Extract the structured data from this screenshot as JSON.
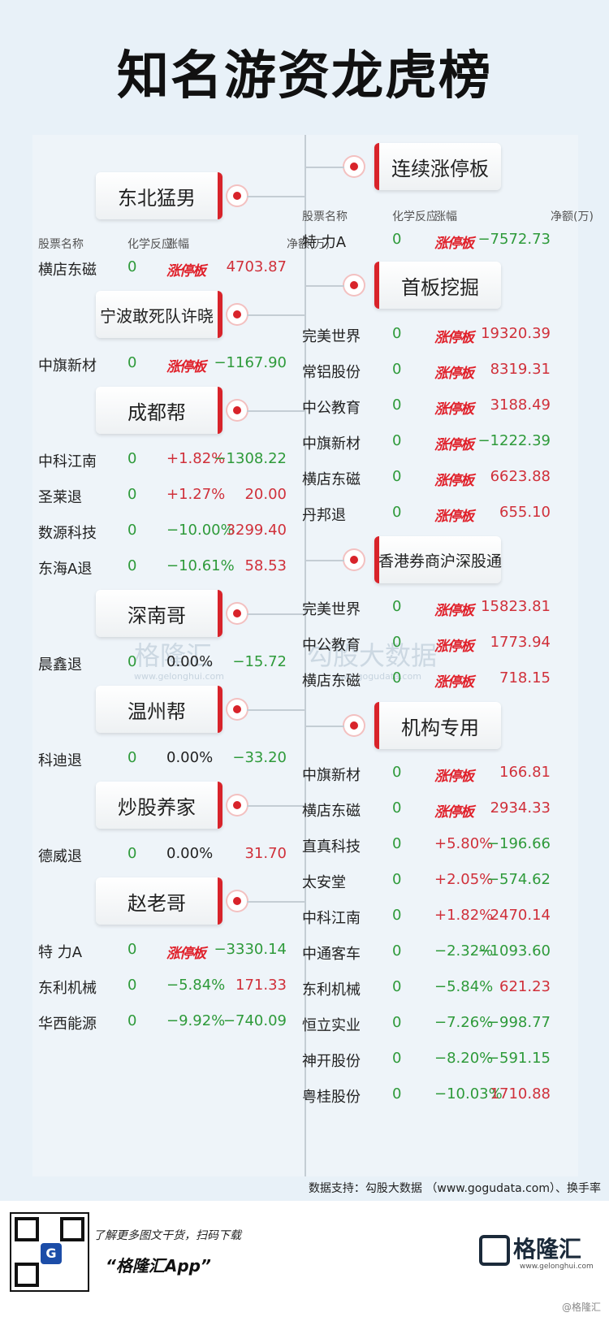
{
  "title": "知名游资龙虎榜",
  "headers": {
    "name": "股票名称",
    "chem": "化学反应",
    "change": "涨幅",
    "net": "净额(万)"
  },
  "limit_label": "涨停板",
  "left": [
    {
      "tag": "东北猛男",
      "rows": [
        {
          "name": "横店东磁",
          "chem": "0",
          "change": "涨停板",
          "net": "4703.87"
        }
      ]
    },
    {
      "tag": "宁波敢死队许晓",
      "rows": [
        {
          "name": "中旗新材",
          "chem": "0",
          "change": "涨停板",
          "net": "−1167.90"
        }
      ]
    },
    {
      "tag": "成都帮",
      "rows": [
        {
          "name": "中科江南",
          "chem": "0",
          "change": "+1.82%",
          "net": "−1308.22"
        },
        {
          "name": "圣莱退",
          "chem": "0",
          "change": "+1.27%",
          "net": "20.00"
        },
        {
          "name": "数源科技",
          "chem": "0",
          "change": "−10.00%",
          "net": "3299.40"
        },
        {
          "name": "东海A退",
          "chem": "0",
          "change": "−10.61%",
          "net": "58.53"
        }
      ]
    },
    {
      "tag": "深南哥",
      "rows": [
        {
          "name": "晨鑫退",
          "chem": "0",
          "change": "0.00%",
          "net": "−15.72"
        }
      ]
    },
    {
      "tag": "温州帮",
      "rows": [
        {
          "name": "科迪退",
          "chem": "0",
          "change": "0.00%",
          "net": "−33.20"
        }
      ]
    },
    {
      "tag": "炒股养家",
      "rows": [
        {
          "name": "德威退",
          "chem": "0",
          "change": "0.00%",
          "net": "31.70"
        }
      ]
    },
    {
      "tag": "赵老哥",
      "rows": [
        {
          "name": "特 力A",
          "chem": "0",
          "change": "涨停板",
          "net": "−3330.14"
        },
        {
          "name": "东利机械",
          "chem": "0",
          "change": "−5.84%",
          "net": "171.33"
        },
        {
          "name": "华西能源",
          "chem": "0",
          "change": "−9.92%",
          "net": "−740.09"
        }
      ]
    }
  ],
  "right": [
    {
      "tag": "连续涨停板",
      "rows": [
        {
          "name": "特 力A",
          "chem": "0",
          "change": "涨停板",
          "net": "−7572.73"
        }
      ]
    },
    {
      "tag": "首板挖掘",
      "rows": [
        {
          "name": "完美世界",
          "chem": "0",
          "change": "涨停板",
          "net": "19320.39"
        },
        {
          "name": "常铝股份",
          "chem": "0",
          "change": "涨停板",
          "net": "8319.31"
        },
        {
          "name": "中公教育",
          "chem": "0",
          "change": "涨停板",
          "net": "3188.49"
        },
        {
          "name": "中旗新材",
          "chem": "0",
          "change": "涨停板",
          "net": "−1222.39"
        },
        {
          "name": "横店东磁",
          "chem": "0",
          "change": "涨停板",
          "net": "6623.88"
        },
        {
          "name": "丹邦退",
          "chem": "0",
          "change": "涨停板",
          "net": "655.10"
        }
      ]
    },
    {
      "tag": "香港券商沪深股通",
      "rows": [
        {
          "name": "完美世界",
          "chem": "0",
          "change": "涨停板",
          "net": "15823.81"
        },
        {
          "name": "中公教育",
          "chem": "0",
          "change": "涨停板",
          "net": "1773.94"
        },
        {
          "name": "横店东磁",
          "chem": "0",
          "change": "涨停板",
          "net": "718.15"
        }
      ]
    },
    {
      "tag": "机构专用",
      "rows": [
        {
          "name": "中旗新材",
          "chem": "0",
          "change": "涨停板",
          "net": "166.81"
        },
        {
          "name": "横店东磁",
          "chem": "0",
          "change": "涨停板",
          "net": "2934.33"
        },
        {
          "name": "直真科技",
          "chem": "0",
          "change": "+5.80%",
          "net": "−196.66"
        },
        {
          "name": "太安堂",
          "chem": "0",
          "change": "+2.05%",
          "net": "−574.62"
        },
        {
          "name": "中科江南",
          "chem": "0",
          "change": "+1.82%",
          "net": "2470.14"
        },
        {
          "name": "中通客车",
          "chem": "0",
          "change": "−2.32%",
          "net": "−1093.60"
        },
        {
          "name": "东利机械",
          "chem": "0",
          "change": "−5.84%",
          "net": "621.23"
        },
        {
          "name": "恒立实业",
          "chem": "0",
          "change": "−7.26%",
          "net": "−998.77"
        },
        {
          "name": "神开股份",
          "chem": "0",
          "change": "−8.20%",
          "net": "−591.15"
        },
        {
          "name": "粤桂股份",
          "chem": "0",
          "change": "−10.03%",
          "net": "1710.88"
        }
      ]
    }
  ],
  "watermark": {
    "brand": "格隆汇",
    "brand_url": "www.gelonghui.com",
    "gogu": "勾股大数据",
    "gogu_url": "www.gogudata.com"
  },
  "source_note": "数据支持：勾股大数据 （www.gogudata.com）、换手率",
  "download_line": "了解更多图文干货，扫码下载",
  "app_name": "“格隆汇App”",
  "logo_text": "格隆汇",
  "logo_url": "www.gelonghui.com",
  "corner_mark": "@格隆汇",
  "colors": {
    "accent": "#d8232a",
    "positive": "#d0303a",
    "negative": "#2e9a3a",
    "background": "#e8f1f8"
  }
}
